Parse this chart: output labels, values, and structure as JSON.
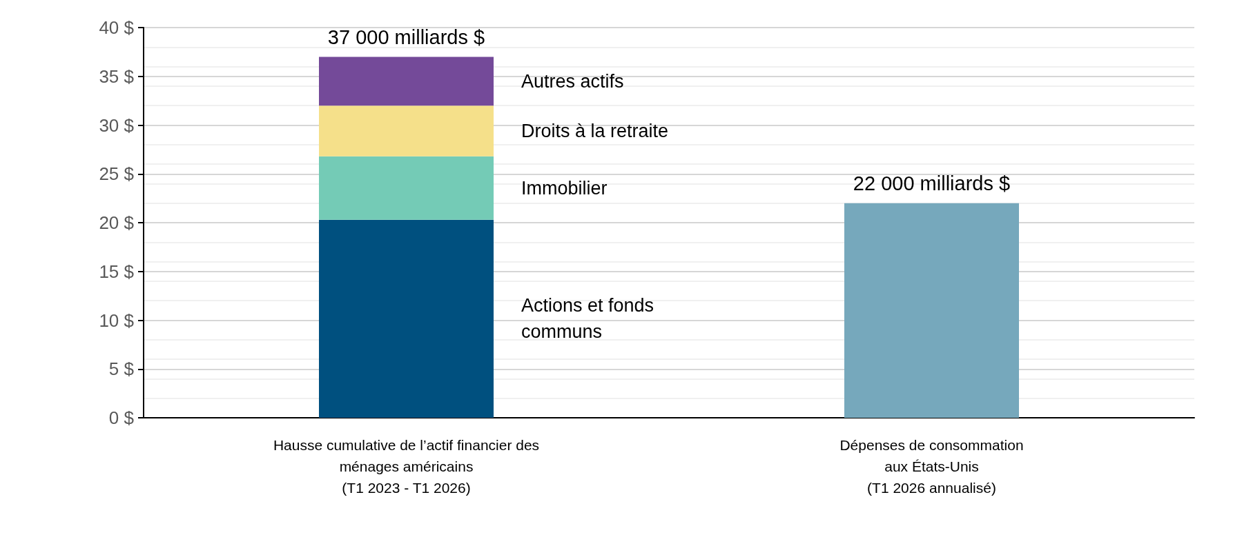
{
  "chart_data": {
    "type": "bar",
    "stacked": true,
    "categories": [
      "Hausse cumulative de l’actif financier des\nménages américains\n(T1 2023 - T1 2026)",
      "Dépenses de consommation\naux États-Unis\n(T1 2026 annualisé)"
    ],
    "series": [
      {
        "name": "Actions et fonds communs",
        "color": "#00507f",
        "values": [
          20.3,
          null
        ]
      },
      {
        "name": "Immobilier",
        "color": "#74cbb6",
        "values": [
          6.5,
          null
        ]
      },
      {
        "name": "Droits à la retraite",
        "color": "#f5e08a",
        "values": [
          5.2,
          null
        ]
      },
      {
        "name": "Autres actifs",
        "color": "#744a99",
        "values": [
          5.0,
          null
        ]
      },
      {
        "color": "#76a8bc",
        "values": [
          null,
          22.0
        ]
      }
    ],
    "totals": [
      "37 000 milliards $",
      "22 000 milliards $"
    ],
    "ylim": [
      0,
      40
    ],
    "yticks": [
      {
        "value": 0,
        "label": "0 $"
      },
      {
        "value": 5,
        "label": "5 $"
      },
      {
        "value": 10,
        "label": "10 $"
      },
      {
        "value": 15,
        "label": "15 $"
      },
      {
        "value": 20,
        "label": "20 $"
      },
      {
        "value": 25,
        "label": "25 $"
      },
      {
        "value": 30,
        "label": "30 $"
      },
      {
        "value": 35,
        "label": "35 $"
      },
      {
        "value": 40,
        "label": "40 $"
      }
    ],
    "grid": "y",
    "legend": false
  }
}
